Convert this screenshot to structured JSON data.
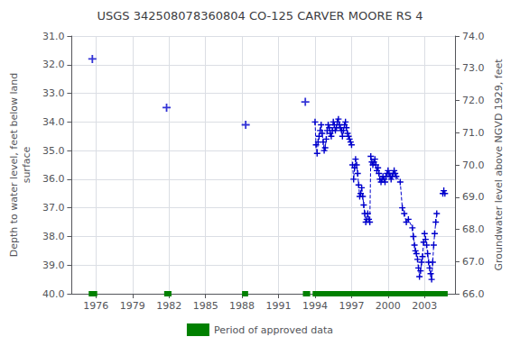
{
  "chart_data": {
    "type": "line",
    "title": "USGS 342508078360804 CO-125 CARVER MOORE RS 4",
    "y_label": "Depth to water level, feet below land\nsurface",
    "y2_label": "Groundwater level above NGVD 1929, feet",
    "xlim": [
      1974.0,
      2005.5
    ],
    "xticks": [
      1976,
      1979,
      1982,
      1985,
      1988,
      1991,
      1994,
      1997,
      2000,
      2003
    ],
    "ylim": [
      40.0,
      31.0
    ],
    "yticks": [
      {
        "value": 31.0,
        "label": "31.0"
      },
      {
        "value": 32.0,
        "label": "32.0"
      },
      {
        "value": 33.0,
        "label": "33.0"
      },
      {
        "value": 34.0,
        "label": "34.0"
      },
      {
        "value": 35.0,
        "label": "35.0"
      },
      {
        "value": 36.0,
        "label": "36.0"
      },
      {
        "value": 37.0,
        "label": "37.0"
      },
      {
        "value": 38.0,
        "label": "38.0"
      },
      {
        "value": 39.0,
        "label": "39.0"
      },
      {
        "value": 40.0,
        "label": "40.0"
      }
    ],
    "y2lim": [
      66.0,
      74.0
    ],
    "y2ticks": [
      {
        "value": 74.0,
        "label": "74.0"
      },
      {
        "value": 73.0,
        "label": "73.0"
      },
      {
        "value": 72.0,
        "label": "72.0"
      },
      {
        "value": 71.0,
        "label": "71.0"
      },
      {
        "value": 70.0,
        "label": "70.0"
      },
      {
        "value": 69.0,
        "label": "69.0"
      },
      {
        "value": 68.0,
        "label": "68.0"
      },
      {
        "value": 67.0,
        "label": "67.0"
      },
      {
        "value": 66.0,
        "label": "66.0"
      }
    ],
    "grid": true,
    "legend": "bottom",
    "series": [
      {
        "type": "scatter",
        "color": "#0000cc",
        "marker": "plus",
        "x": [
          1975.7,
          1981.8,
          1988.3,
          1993.2
        ],
        "values": [
          31.8,
          33.5,
          34.1,
          33.3
        ]
      },
      {
        "type": "line",
        "color": "#0000cc",
        "marker": "plus",
        "line_style": "dashed",
        "x": [
          1994.0,
          1994.08,
          1994.17,
          1994.25,
          1994.33,
          1994.42,
          1994.5,
          1994.58,
          1994.67,
          1994.75,
          1994.83,
          1994.92,
          1995.0,
          1995.08,
          1995.17,
          1995.25,
          1995.33,
          1995.42,
          1995.5,
          1995.58,
          1995.67,
          1995.75,
          1995.83,
          1995.92,
          1996.0,
          1996.08,
          1996.17,
          1996.25,
          1996.33,
          1996.42,
          1996.5,
          1996.58,
          1996.67,
          1996.75,
          1996.83,
          1996.92,
          1997.0,
          null,
          1997.08,
          1997.17,
          1997.25,
          1997.33,
          1997.42,
          1997.5,
          1997.58,
          1997.67,
          1997.75,
          1997.83,
          1997.92,
          1998.0,
          1998.08,
          1998.17,
          1998.25,
          1998.33,
          1998.42,
          1998.5,
          1998.58,
          1998.67,
          1998.75,
          1998.83,
          1998.92,
          1999.0,
          1999.08,
          1999.17,
          1999.25,
          1999.33,
          1999.42,
          1999.5,
          1999.58,
          1999.67,
          1999.75,
          1999.83,
          1999.92,
          2000.0,
          2000.08,
          2000.17,
          2000.25,
          2000.33,
          2000.42,
          2000.5,
          2000.58,
          2000.67,
          2001.0,
          2001.17,
          2001.33,
          2001.5,
          2001.67,
          2002.0,
          2002.08,
          2002.17,
          2002.25,
          2002.33,
          2002.42,
          2002.5,
          2002.58,
          2002.67,
          2002.75,
          2002.83,
          2002.92,
          null,
          2003.0,
          2003.08,
          2003.17,
          2003.25,
          2003.33,
          2003.42,
          2003.5,
          2003.58,
          2003.67,
          2003.75,
          2003.83,
          2003.92,
          2004.0,
          null,
          2004.5,
          2004.58,
          2004.67
        ],
        "values": [
          34.0,
          34.8,
          35.1,
          34.7,
          34.5,
          34.3,
          34.1,
          34.4,
          34.7,
          35.0,
          34.9,
          34.6,
          34.3,
          34.1,
          34.2,
          34.4,
          34.5,
          34.3,
          34.0,
          34.1,
          34.3,
          34.2,
          34.0,
          33.9,
          34.1,
          34.2,
          34.3,
          34.5,
          34.3,
          34.1,
          34.0,
          34.2,
          34.4,
          34.5,
          34.6,
          34.7,
          34.8,
          null,
          35.5,
          36.0,
          35.6,
          35.3,
          35.5,
          35.8,
          36.2,
          36.6,
          36.5,
          36.3,
          36.6,
          36.9,
          37.2,
          37.5,
          37.4,
          37.2,
          37.4,
          37.5,
          35.2,
          35.4,
          35.5,
          35.4,
          35.3,
          35.5,
          35.7,
          35.6,
          35.8,
          36.0,
          36.1,
          36.0,
          35.9,
          36.0,
          36.1,
          35.9,
          35.8,
          35.7,
          35.8,
          35.9,
          36.0,
          35.9,
          35.8,
          35.7,
          35.8,
          35.9,
          36.1,
          37.0,
          37.2,
          37.5,
          37.4,
          37.7,
          38.0,
          38.3,
          38.5,
          38.6,
          38.8,
          39.1,
          39.4,
          39.2,
          38.9,
          38.7,
          38.2,
          null,
          37.9,
          38.1,
          38.3,
          38.6,
          38.9,
          39.1,
          39.3,
          39.5,
          38.9,
          38.3,
          37.9,
          37.5,
          37.2,
          null,
          36.5,
          36.4,
          36.5
        ]
      },
      {
        "name": "Period of approved data",
        "type": "line",
        "color": "#008000",
        "marker": "none",
        "line_style": "solid",
        "x": [
          1975.4,
          1976.1,
          null,
          1981.6,
          1982.2,
          null,
          1988.0,
          1988.5,
          null,
          1993.0,
          1993.6,
          null,
          1993.8,
          2004.9
        ],
        "values": [
          40.0,
          40.0,
          null,
          40.0,
          40.0,
          null,
          40.0,
          40.0,
          null,
          40.0,
          40.0,
          null,
          40.0,
          40.0
        ]
      }
    ]
  }
}
